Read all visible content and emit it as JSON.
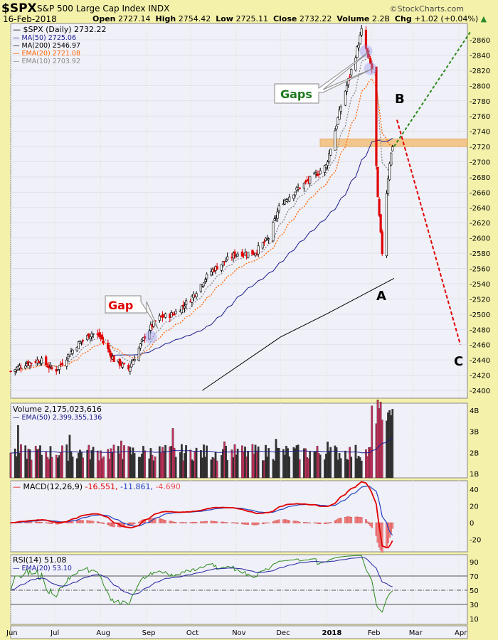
{
  "header": {
    "symbol": "$SPX",
    "name": "S&P 500 Large Cap Index",
    "exchange": "INDX",
    "date": "16-Feb-2018",
    "watermark": "©StockCharts.com",
    "open_label": "Open",
    "open": "2727.14",
    "high_label": "High",
    "high": "2754.42",
    "low_label": "Low",
    "low": "2725.11",
    "close_label": "Close",
    "close": "2732.22",
    "volume_label": "Volume",
    "volume": "2.2B",
    "chg_label": "Chg",
    "chg": "+1.02 (+0.04%)"
  },
  "legend": {
    "price": "$SPX (Daily) 2732.22",
    "ma50": "MA(50) 2725.06",
    "ma200": "MA(200) 2546.97",
    "ema20": "EMA(20) 2721.08",
    "ema10": "EMA(10) 2703.92"
  },
  "annotations": {
    "gap": "Gap",
    "gaps": "Gaps",
    "a": "A",
    "b": "B",
    "c": "C"
  },
  "volume_legend": {
    "volume": "Volume 2,175,023,616",
    "ema": "EMA(50) 2,399,355,136"
  },
  "macd_legend": {
    "name": "MACD(12,26,9)",
    "macd": "-16.551,",
    "signal": "-11.861,",
    "hist": "-4.690"
  },
  "rsi_legend": {
    "rsi": "RSI(14) 51.08",
    "ema": "EMA(20) 53.10"
  },
  "colors": {
    "up": "#ffffff",
    "down": "#e00000",
    "ma50": "#1a1a8c",
    "ma200": "#000000",
    "ema20": "#ff6600",
    "ema10": "#888888",
    "band": "#f5b96a"
  },
  "chart_data": {
    "type": "candlestick",
    "title": "$SPX (Daily)",
    "ylim": [
      2400,
      2870
    ],
    "price_ticks": [
      2400,
      2420,
      2440,
      2460,
      2480,
      2500,
      2520,
      2540,
      2560,
      2580,
      2600,
      2620,
      2640,
      2660,
      2680,
      2700,
      2720,
      2740,
      2760,
      2780,
      2800,
      2820,
      2840,
      2860
    ],
    "x_ticks": [
      {
        "label": "Jun",
        "day": 0
      },
      {
        "label": "Jul",
        "day": 30
      },
      {
        "label": "Aug",
        "day": 61
      },
      {
        "label": "Sep",
        "day": 92
      },
      {
        "label": "Oct",
        "day": 122
      },
      {
        "label": "Nov",
        "day": 153
      },
      {
        "label": "Dec",
        "day": 183
      },
      {
        "label": "2018",
        "day": 214
      },
      {
        "label": "Feb",
        "day": 245
      },
      {
        "label": "Mar",
        "day": 273
      },
      {
        "label": "Apr",
        "day": 304
      }
    ],
    "close_anchors": [
      [
        0,
        2425
      ],
      [
        10,
        2435
      ],
      [
        20,
        2440
      ],
      [
        30,
        2425
      ],
      [
        45,
        2460
      ],
      [
        55,
        2475
      ],
      [
        61,
        2470
      ],
      [
        70,
        2440
      ],
      [
        80,
        2428
      ],
      [
        92,
        2475
      ],
      [
        100,
        2495
      ],
      [
        110,
        2500
      ],
      [
        122,
        2520
      ],
      [
        135,
        2555
      ],
      [
        153,
        2580
      ],
      [
        165,
        2580
      ],
      [
        175,
        2600
      ],
      [
        183,
        2645
      ],
      [
        195,
        2665
      ],
      [
        205,
        2680
      ],
      [
        214,
        2695
      ],
      [
        225,
        2780
      ],
      [
        234,
        2840
      ],
      [
        238,
        2872
      ],
      [
        242,
        2840
      ],
      [
        245,
        2822
      ],
      [
        249,
        2650
      ],
      [
        252,
        2581
      ],
      [
        253,
        2620
      ],
      [
        257,
        2700
      ],
      [
        260,
        2732
      ]
    ],
    "ma200_anchors": [
      [
        130,
        2400
      ],
      [
        183,
        2470
      ],
      [
        214,
        2500
      ],
      [
        260,
        2547
      ]
    ],
    "resistance_band": [
      2720,
      2730
    ],
    "projection_up": [
      [
        260,
        2720
      ],
      [
        302,
        2870
      ]
    ],
    "projection_down": [
      [
        262,
        2755
      ],
      [
        305,
        2460
      ]
    ],
    "volume_ticks": [
      "1B",
      "2B",
      "3B",
      "4B"
    ],
    "macd_ticks": [
      -20,
      0,
      20,
      40
    ],
    "rsi_ticks": [
      10,
      30,
      50,
      70,
      90
    ]
  }
}
